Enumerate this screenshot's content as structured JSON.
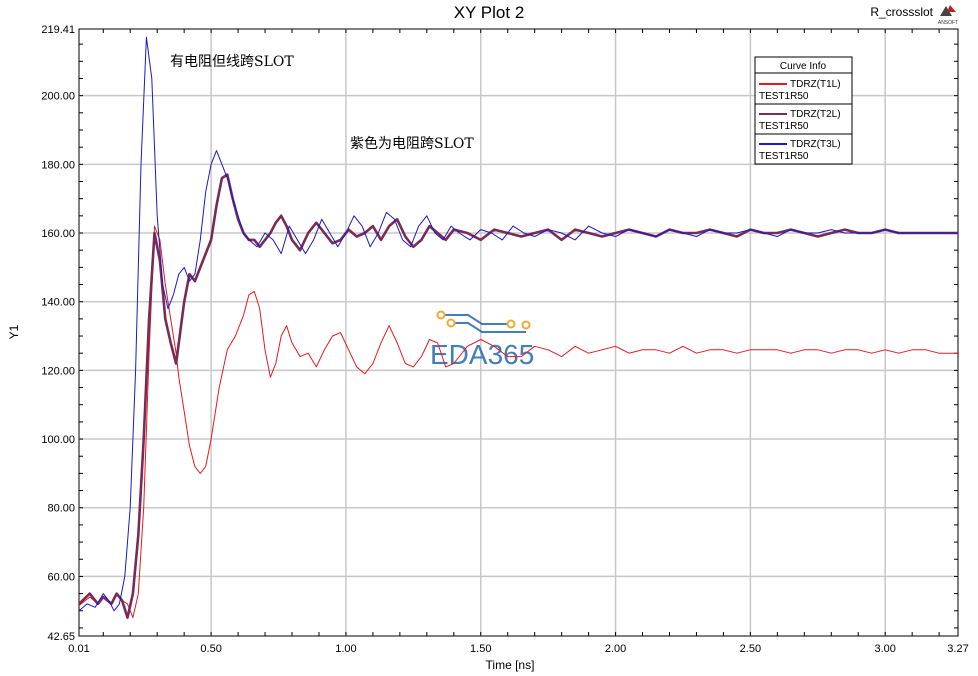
{
  "chart_data": {
    "type": "line",
    "title": "XY Plot 2",
    "design_name": "R_crossslot",
    "logo_text": "ANSOFT",
    "xlabel": "Time [ns]",
    "ylabel": "Y1",
    "xlim": [
      0.01,
      3.27
    ],
    "ylim": [
      42.65,
      219.41
    ],
    "x_ticks": [
      "0.01",
      "0.50",
      "1.00",
      "1.50",
      "2.00",
      "2.50",
      "3.00",
      "3.27"
    ],
    "x_tick_values": [
      0.01,
      0.5,
      1.0,
      1.5,
      2.0,
      2.5,
      3.0,
      3.27
    ],
    "y_ticks": [
      "42.65",
      "60.00",
      "80.00",
      "100.00",
      "120.00",
      "140.00",
      "160.00",
      "180.00",
      "200.00",
      "219.41"
    ],
    "y_tick_values": [
      42.65,
      60,
      80,
      100,
      120,
      140,
      160,
      180,
      200,
      219.41
    ],
    "grid": true,
    "legend_title": "Curve Info",
    "legend_position": "top-right",
    "annotations": [
      "有电阻但线跨SLOT",
      "紫色为电阻跨SLOT"
    ],
    "watermark": "EDA365",
    "series": [
      {
        "name": "TDRZ(T1L)",
        "subname": "TEST1R50",
        "color": "#e8191f",
        "x": [
          0.01,
          0.05,
          0.08,
          0.1,
          0.13,
          0.15,
          0.17,
          0.19,
          0.21,
          0.23,
          0.25,
          0.27,
          0.29,
          0.31,
          0.33,
          0.35,
          0.37,
          0.38,
          0.4,
          0.42,
          0.44,
          0.46,
          0.48,
          0.5,
          0.53,
          0.56,
          0.59,
          0.62,
          0.64,
          0.66,
          0.68,
          0.7,
          0.72,
          0.74,
          0.76,
          0.78,
          0.8,
          0.83,
          0.86,
          0.89,
          0.92,
          0.95,
          0.98,
          1.01,
          1.04,
          1.07,
          1.1,
          1.13,
          1.16,
          1.19,
          1.22,
          1.25,
          1.28,
          1.31,
          1.34,
          1.37,
          1.4,
          1.45,
          1.5,
          1.55,
          1.6,
          1.65,
          1.7,
          1.75,
          1.8,
          1.85,
          1.9,
          1.95,
          2.0,
          2.05,
          2.1,
          2.15,
          2.2,
          2.25,
          2.3,
          2.35,
          2.4,
          2.45,
          2.5,
          2.55,
          2.6,
          2.65,
          2.7,
          2.75,
          2.8,
          2.85,
          2.9,
          2.95,
          3.0,
          3.05,
          3.1,
          3.15,
          3.2,
          3.27
        ],
        "values": [
          51.5,
          54,
          52,
          54,
          52,
          55,
          53,
          52,
          48,
          55,
          80,
          125,
          162,
          158,
          145,
          135,
          125,
          118,
          108,
          98,
          92,
          90,
          92,
          100,
          115,
          126,
          130,
          136,
          142,
          143,
          138,
          126,
          118,
          122,
          130,
          133,
          128,
          124,
          125,
          121,
          126,
          130,
          131,
          126,
          121,
          119,
          122,
          128,
          133,
          128,
          122,
          121,
          124,
          129,
          128,
          121,
          122,
          127,
          129,
          127,
          124,
          124,
          127,
          126,
          124,
          127,
          125,
          126,
          127,
          125,
          126,
          126,
          125,
          127,
          125,
          126,
          126,
          125,
          126,
          126,
          126,
          125,
          126,
          126,
          125,
          126,
          126,
          125,
          126,
          125,
          126,
          126,
          125,
          125
        ]
      },
      {
        "name": "TDRZ(T2L)",
        "subname": "TEST1R50",
        "color": "#7a2a55",
        "x": [
          0.01,
          0.05,
          0.08,
          0.1,
          0.13,
          0.15,
          0.17,
          0.19,
          0.21,
          0.23,
          0.25,
          0.27,
          0.29,
          0.31,
          0.33,
          0.35,
          0.37,
          0.38,
          0.4,
          0.42,
          0.44,
          0.46,
          0.48,
          0.5,
          0.52,
          0.54,
          0.56,
          0.58,
          0.6,
          0.62,
          0.64,
          0.66,
          0.68,
          0.7,
          0.72,
          0.74,
          0.76,
          0.78,
          0.8,
          0.83,
          0.86,
          0.89,
          0.92,
          0.95,
          0.98,
          1.01,
          1.04,
          1.07,
          1.1,
          1.13,
          1.16,
          1.19,
          1.22,
          1.25,
          1.28,
          1.31,
          1.34,
          1.37,
          1.4,
          1.45,
          1.5,
          1.55,
          1.6,
          1.65,
          1.7,
          1.75,
          1.8,
          1.85,
          1.9,
          1.95,
          2.0,
          2.05,
          2.1,
          2.15,
          2.2,
          2.25,
          2.3,
          2.35,
          2.4,
          2.45,
          2.5,
          2.55,
          2.6,
          2.65,
          2.7,
          2.75,
          2.8,
          2.85,
          2.9,
          2.95,
          3.0,
          3.05,
          3.1,
          3.15,
          3.2,
          3.27
        ],
        "values": [
          52,
          55,
          52,
          54,
          52,
          55,
          53,
          48,
          55,
          72,
          100,
          135,
          160,
          152,
          135,
          128,
          122,
          128,
          140,
          148,
          146,
          150,
          154,
          158,
          168,
          176,
          177,
          170,
          164,
          160,
          158,
          158,
          156,
          158,
          160,
          163,
          165,
          162,
          158,
          155,
          160,
          163,
          160,
          157,
          158,
          161,
          159,
          160,
          162,
          158,
          162,
          164,
          159,
          156,
          158,
          162,
          160,
          158,
          161,
          160,
          158,
          161,
          160,
          159,
          160,
          161,
          158,
          161,
          160,
          159,
          160,
          161,
          160,
          159,
          161,
          160,
          160,
          161,
          160,
          159,
          161,
          160,
          160,
          161,
          160,
          159,
          160,
          161,
          160,
          160,
          161,
          160,
          160,
          160,
          160,
          160
        ]
      },
      {
        "name": "TDRZ(T3L)",
        "subname": "TEST1R50",
        "color": "#1a1acc",
        "x": [
          0.01,
          0.04,
          0.07,
          0.1,
          0.12,
          0.14,
          0.16,
          0.18,
          0.2,
          0.22,
          0.24,
          0.26,
          0.28,
          0.3,
          0.32,
          0.34,
          0.36,
          0.38,
          0.4,
          0.42,
          0.44,
          0.46,
          0.48,
          0.5,
          0.52,
          0.54,
          0.56,
          0.58,
          0.6,
          0.62,
          0.64,
          0.67,
          0.7,
          0.73,
          0.76,
          0.79,
          0.82,
          0.85,
          0.88,
          0.91,
          0.94,
          0.97,
          1.0,
          1.03,
          1.06,
          1.09,
          1.12,
          1.15,
          1.18,
          1.21,
          1.24,
          1.27,
          1.3,
          1.33,
          1.36,
          1.39,
          1.42,
          1.46,
          1.5,
          1.54,
          1.58,
          1.62,
          1.66,
          1.7,
          1.75,
          1.8,
          1.85,
          1.9,
          1.95,
          2.0,
          2.05,
          2.1,
          2.15,
          2.2,
          2.25,
          2.3,
          2.35,
          2.4,
          2.45,
          2.5,
          2.55,
          2.6,
          2.65,
          2.7,
          2.75,
          2.8,
          2.85,
          2.9,
          2.95,
          3.0,
          3.05,
          3.1,
          3.15,
          3.2,
          3.27
        ],
        "values": [
          50,
          52,
          51,
          55,
          53,
          50,
          52,
          60,
          80,
          120,
          180,
          217,
          205,
          165,
          145,
          138,
          142,
          148,
          150,
          146,
          148,
          158,
          172,
          180,
          184,
          180,
          176,
          170,
          165,
          160,
          158,
          156,
          160,
          158,
          154,
          162,
          158,
          154,
          158,
          164,
          160,
          156,
          160,
          165,
          162,
          156,
          160,
          166,
          164,
          158,
          156,
          162,
          165,
          160,
          158,
          162,
          160,
          158,
          161,
          160,
          158,
          162,
          160,
          159,
          161,
          160,
          158,
          162,
          160,
          159,
          161,
          160,
          159,
          161,
          160,
          159,
          161,
          160,
          160,
          161,
          160,
          159,
          161,
          160,
          160,
          161,
          160,
          160,
          160,
          161,
          160,
          160,
          160,
          160,
          160
        ]
      }
    ]
  }
}
